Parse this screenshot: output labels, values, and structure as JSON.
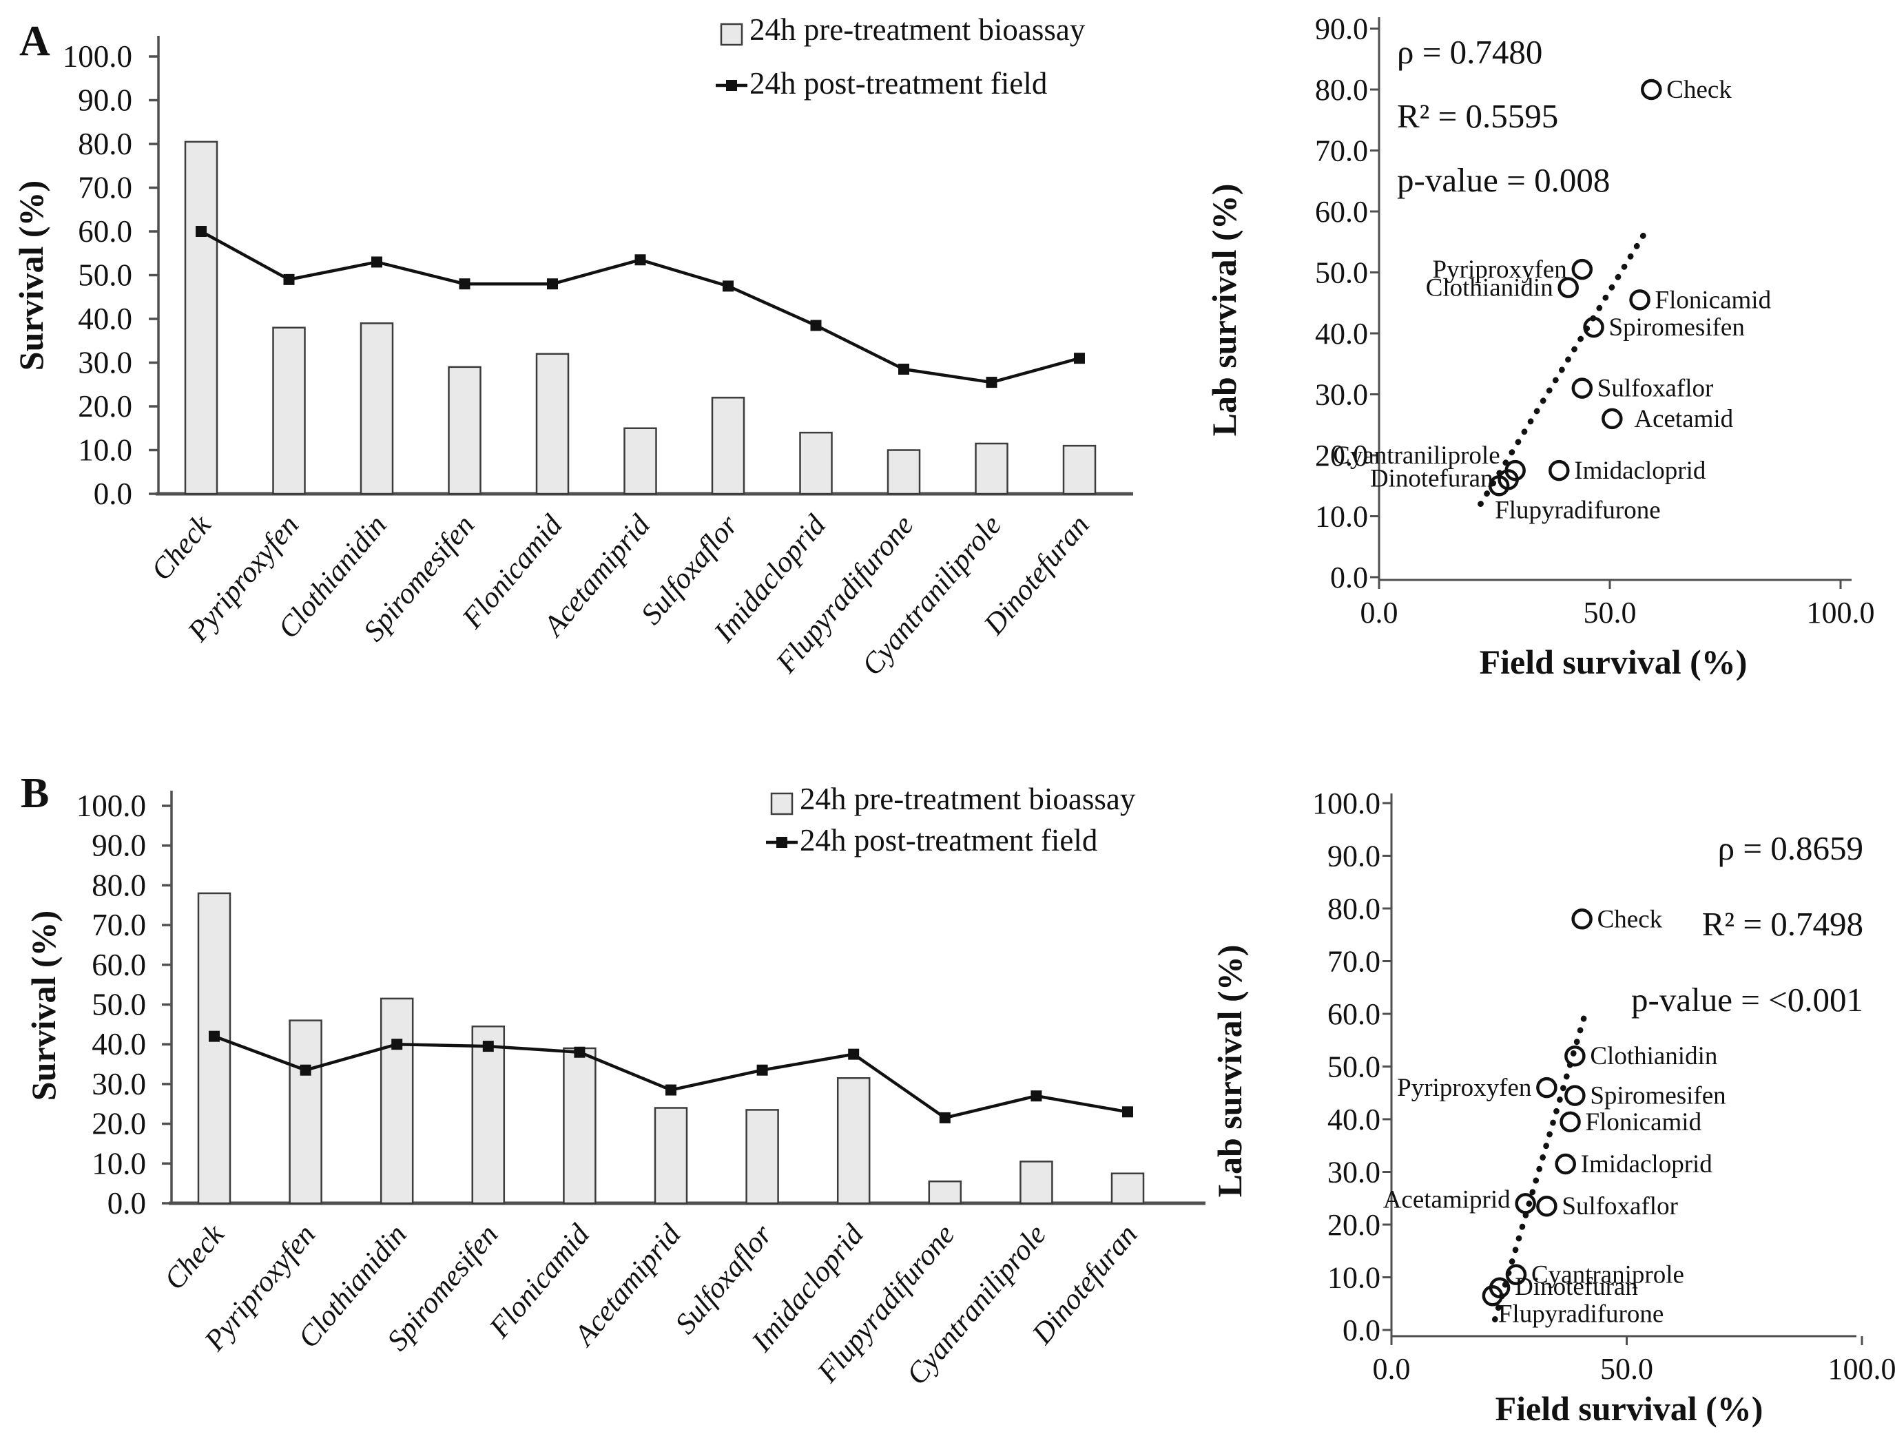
{
  "figure": {
    "background": "#ffffff",
    "ink": "#111111",
    "axis_color": "#4f4f4f",
    "bar_fill": "#e9e9e9",
    "bar_stroke": "#3c3c3c",
    "line_color": "#111111"
  },
  "chart_data": [
    {
      "id": "panelA",
      "type": "bar+line",
      "panel_label": "A",
      "ylabel": "Survival (%)",
      "ylim": [
        0,
        100
      ],
      "ytick_step": 10,
      "legend_position": "top-right-inside",
      "categories": [
        "Check",
        "Pyriproxyfen",
        "Clothianidin",
        "Spiromesifen",
        "Flonicamid",
        "Acetamiprid",
        "Sulfoxaflor",
        "Imidacloprid",
        "Flupyradifurone",
        "Cyantraniliprole",
        "Dinotefuran"
      ],
      "series": [
        {
          "name": "24h pre-treatment bioassay",
          "style": "bar",
          "values": [
            80.5,
            38,
            39,
            29,
            32,
            15,
            22,
            14,
            10,
            11.5,
            11
          ]
        },
        {
          "name": "24h post-treatment field",
          "style": "line",
          "values": [
            60,
            49,
            53,
            48,
            48,
            53.5,
            47.5,
            38.5,
            28.5,
            25.5,
            31
          ]
        }
      ]
    },
    {
      "id": "scatterA",
      "type": "scatter",
      "xlabel": "Field survival (%)",
      "ylabel": "Lab survival (%)",
      "xlim": [
        0,
        100
      ],
      "ylim": [
        0,
        90
      ],
      "xticks": [
        0,
        50,
        100
      ],
      "ytick_step": 10,
      "stats": [
        "ρ = 0.7480",
        "R² = 0.5595",
        "p-value = 0.008"
      ],
      "stats_align": "left",
      "trend": {
        "x1": 22,
        "y1": 12,
        "x2": 58,
        "y2": 57,
        "style": "dotted"
      },
      "points": [
        {
          "label": "Check",
          "x": 59,
          "y": 80,
          "side": "right"
        },
        {
          "label": "Pyriproxyfen",
          "x": 44,
          "y": 50.5,
          "side": "left"
        },
        {
          "label": "Clothianidin",
          "x": 41,
          "y": 47.5,
          "side": "left"
        },
        {
          "label": "Flonicamid",
          "x": 56.5,
          "y": 45.5,
          "side": "right"
        },
        {
          "label": "Spiromesifen",
          "x": 46.5,
          "y": 41,
          "side": "right"
        },
        {
          "label": "Sulfoxaflor",
          "x": 44,
          "y": 31,
          "side": "right"
        },
        {
          "label": "Acetamid",
          "x": 50.5,
          "y": 26,
          "side": "right",
          "ldx": 10
        },
        {
          "label": "Imidacloprid",
          "x": 39,
          "y": 17.5,
          "side": "right"
        },
        {
          "label": "Cyantraniliprole",
          "x": 29.5,
          "y": 17.5,
          "side": "left",
          "ldy": -22
        },
        {
          "label": "Dinotefuran",
          "x": 28,
          "y": 16,
          "side": "left",
          "ldy": -2
        },
        {
          "label": "Flupyradifurone",
          "x": 26,
          "y": 15,
          "side": "below"
        }
      ]
    },
    {
      "id": "panelB",
      "type": "bar+line",
      "panel_label": "B",
      "ylabel": "Survival (%)",
      "ylim": [
        0,
        100
      ],
      "ytick_step": 10,
      "legend_position": "top-right-inside",
      "categories": [
        "Check",
        "Pyriproxyfen",
        "Clothianidin",
        "Spiromesifen",
        "Flonicamid",
        "Acetamiprid",
        "Sulfoxaflor",
        "Imidacloprid",
        "Flupyradifurone",
        "Cyantraniliprole",
        "Dinotefuran"
      ],
      "series": [
        {
          "name": "24h pre-treatment bioassay",
          "style": "bar",
          "values": [
            78,
            46,
            51.5,
            44.5,
            39,
            24,
            23.5,
            31.5,
            5.5,
            10.5,
            7.5
          ]
        },
        {
          "name": "24h post-treatment field",
          "style": "line",
          "values": [
            42,
            33.5,
            40,
            39.5,
            38,
            28.5,
            33.5,
            37.5,
            21.5,
            27,
            23
          ]
        }
      ]
    },
    {
      "id": "scatterB",
      "type": "scatter",
      "xlabel": "Field survival (%)",
      "ylabel": "Lab survival (%)",
      "xlim": [
        0,
        100
      ],
      "ylim": [
        0,
        100
      ],
      "xticks": [
        0,
        50,
        100
      ],
      "ytick_step": 10,
      "stats": [
        "ρ = 0.8659",
        "R² = 0.7498",
        "p-value = <0.001"
      ],
      "stats_align": "right",
      "trend": {
        "x1": 22,
        "y1": 2,
        "x2": 41,
        "y2": 59.5,
        "style": "dotted"
      },
      "points": [
        {
          "label": "Check",
          "x": 40.5,
          "y": 78,
          "side": "right"
        },
        {
          "label": "Clothianidin",
          "x": 39,
          "y": 52,
          "side": "right"
        },
        {
          "label": "Pyriproxyfen",
          "x": 33,
          "y": 46,
          "side": "left"
        },
        {
          "label": "Spiromesifen",
          "x": 39,
          "y": 44.5,
          "side": "right"
        },
        {
          "label": "Flonicamid",
          "x": 38,
          "y": 39.5,
          "side": "right"
        },
        {
          "label": "Imidacloprid",
          "x": 37,
          "y": 31.5,
          "side": "right"
        },
        {
          "label": "Acetamiprid",
          "x": 28.5,
          "y": 24,
          "side": "left",
          "ldy": -6
        },
        {
          "label": "Sulfoxaflor",
          "x": 33,
          "y": 23.5,
          "side": "right"
        },
        {
          "label": "Cyantraniprole",
          "x": 26.5,
          "y": 10.5,
          "side": "right"
        },
        {
          "label": "Dinotefuran",
          "x": 23,
          "y": 8,
          "side": "right",
          "ldy": -2
        },
        {
          "label": "Flupyradifurone",
          "x": 21.5,
          "y": 6.5,
          "side": "right",
          "ldx": -14,
          "ldy": 26
        }
      ]
    }
  ]
}
